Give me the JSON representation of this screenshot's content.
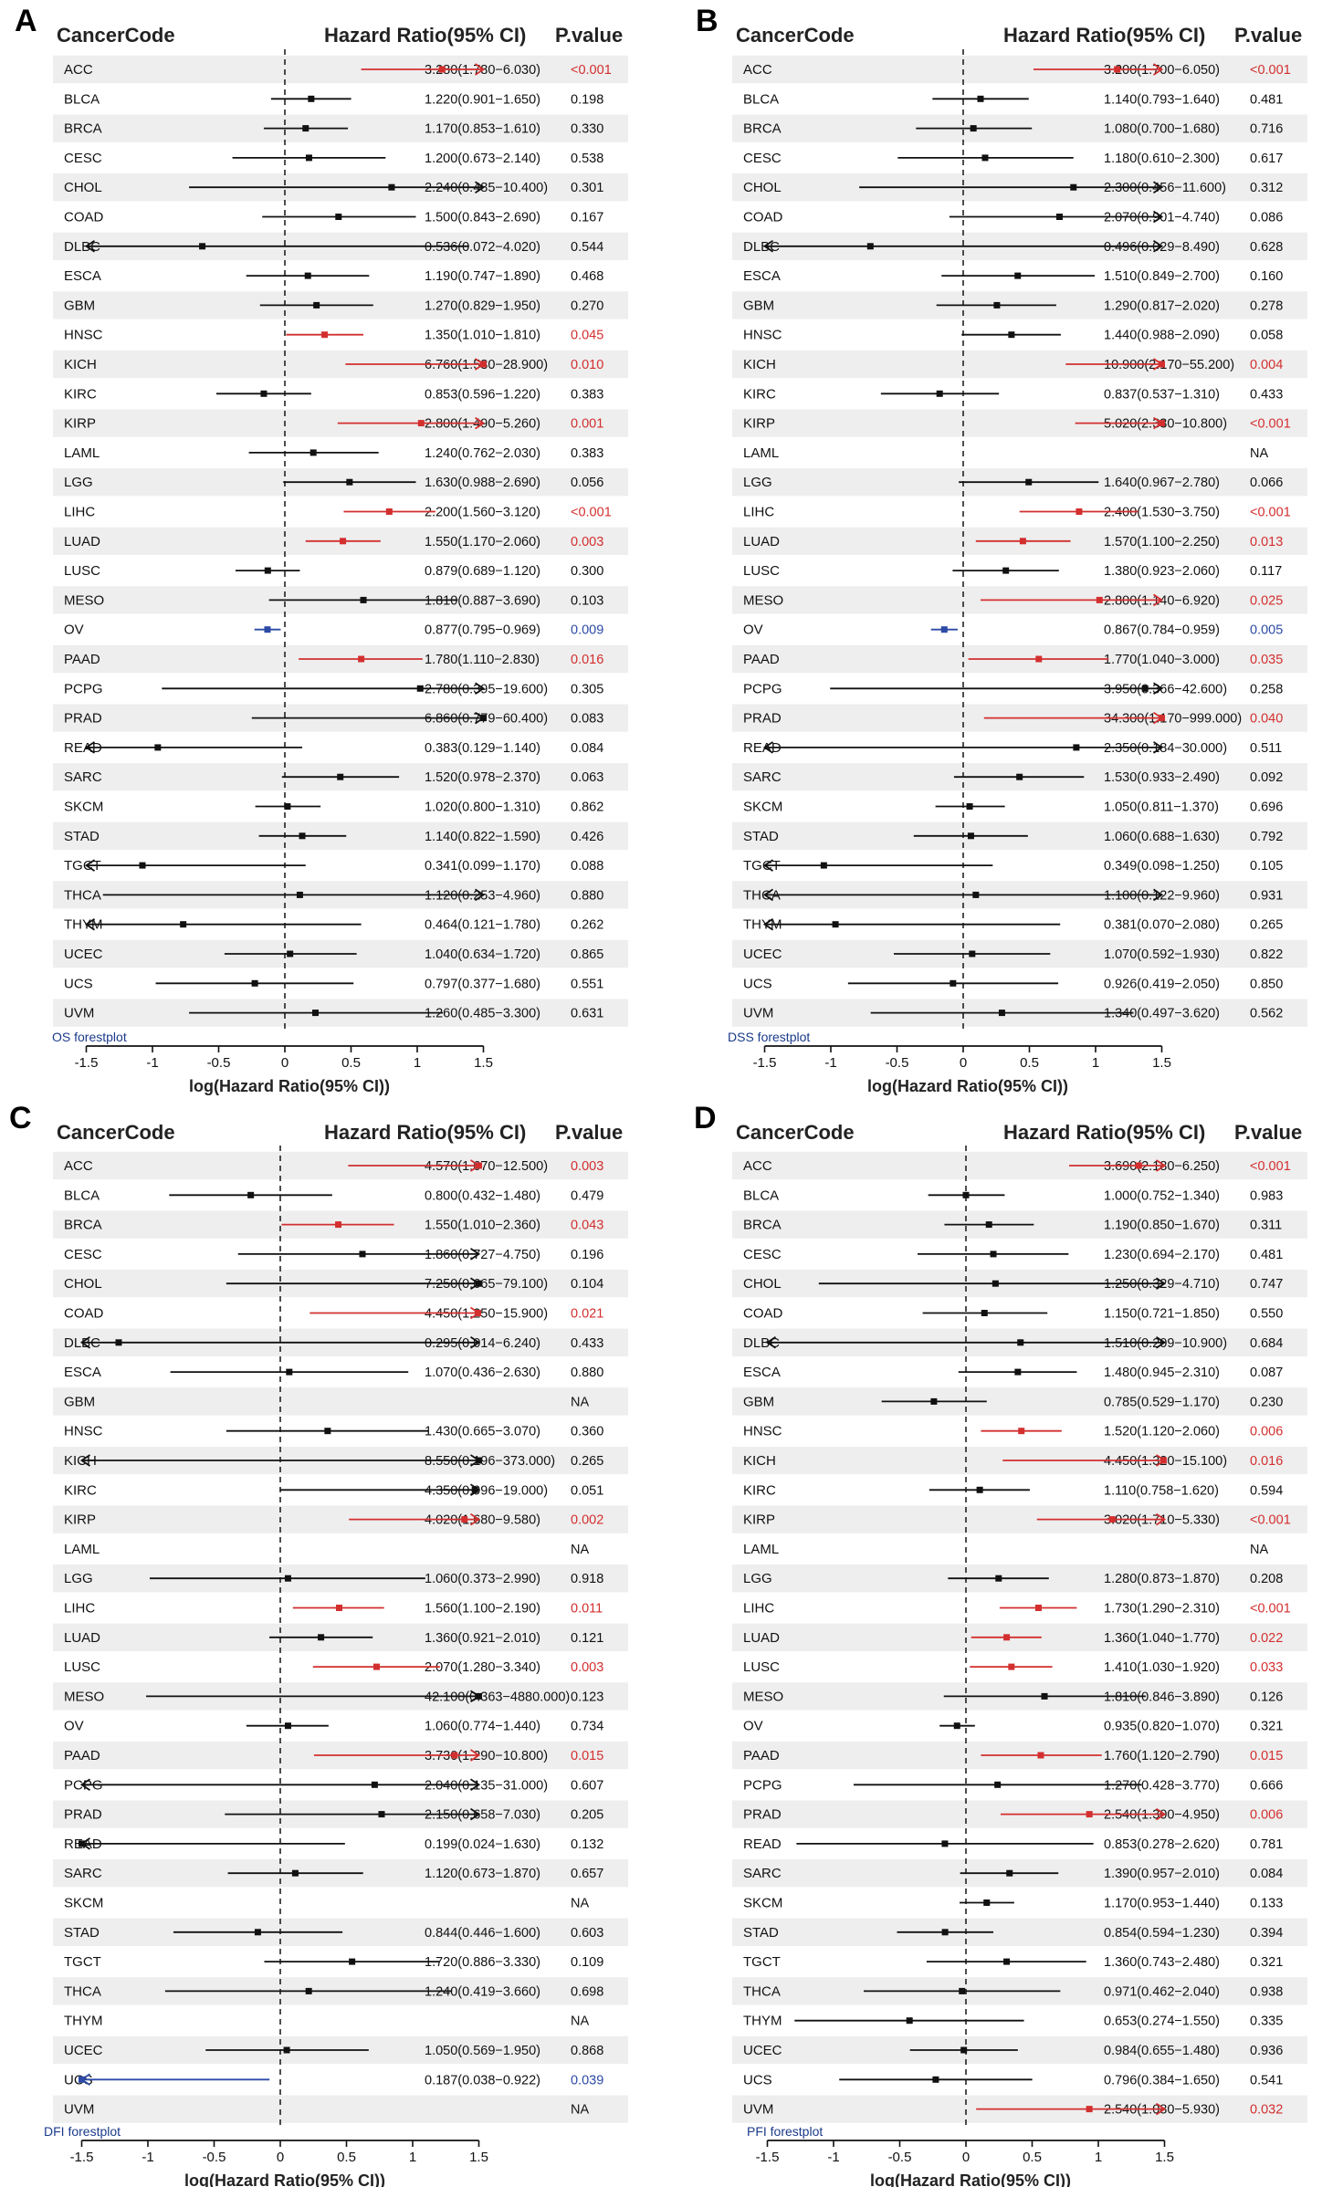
{
  "colors": {
    "sig_up": "#d32f2f",
    "sig_down": "#2c4aa6",
    "ns": "#111111",
    "stripe": "#eeeeee",
    "axis": "#111111",
    "plot_label": "#1a3a8a"
  },
  "column_headers": {
    "code": "CancerCode",
    "hr": "Hazard Ratio(95% CI)",
    "p": "P.value"
  },
  "panels": [
    {
      "letter": "A",
      "plot_label": "OS forestplot",
      "xlabel": "log(Hazard Ratio(95% CI))",
      "ticks": [
        "-1.5",
        "-1",
        "-0.5",
        "0",
        "0.5",
        "1",
        "1.5"
      ],
      "rows": [
        {
          "code": "ACC",
          "hr": "3.280(1.780−6.030)",
          "p": "<0.001",
          "sig": "up"
        },
        {
          "code": "BLCA",
          "hr": "1.220(0.901−1.650)",
          "p": "0.198",
          "sig": "ns"
        },
        {
          "code": "BRCA",
          "hr": "1.170(0.853−1.610)",
          "p": "0.330",
          "sig": "ns"
        },
        {
          "code": "CESC",
          "hr": "1.200(0.673−2.140)",
          "p": "0.538",
          "sig": "ns"
        },
        {
          "code": "CHOL",
          "hr": "2.240(0.485−10.400)",
          "p": "0.301",
          "sig": "ns"
        },
        {
          "code": "COAD",
          "hr": "1.500(0.843−2.690)",
          "p": "0.167",
          "sig": "ns"
        },
        {
          "code": "DLBC",
          "hr": "0.536(0.072−4.020)",
          "p": "0.544",
          "sig": "ns"
        },
        {
          "code": "ESCA",
          "hr": "1.190(0.747−1.890)",
          "p": "0.468",
          "sig": "ns"
        },
        {
          "code": "GBM",
          "hr": "1.270(0.829−1.950)",
          "p": "0.270",
          "sig": "ns"
        },
        {
          "code": "HNSC",
          "hr": "1.350(1.010−1.810)",
          "p": "0.045",
          "sig": "up"
        },
        {
          "code": "KICH",
          "hr": "6.760(1.580−28.900)",
          "p": "0.010",
          "sig": "up"
        },
        {
          "code": "KIRC",
          "hr": "0.853(0.596−1.220)",
          "p": "0.383",
          "sig": "ns"
        },
        {
          "code": "KIRP",
          "hr": "2.800(1.490−5.260)",
          "p": "0.001",
          "sig": "up"
        },
        {
          "code": "LAML",
          "hr": "1.240(0.762−2.030)",
          "p": "0.383",
          "sig": "ns"
        },
        {
          "code": "LGG",
          "hr": "1.630(0.988−2.690)",
          "p": "0.056",
          "sig": "ns"
        },
        {
          "code": "LIHC",
          "hr": "2.200(1.560−3.120)",
          "p": "<0.001",
          "sig": "up"
        },
        {
          "code": "LUAD",
          "hr": "1.550(1.170−2.060)",
          "p": "0.003",
          "sig": "up"
        },
        {
          "code": "LUSC",
          "hr": "0.879(0.689−1.120)",
          "p": "0.300",
          "sig": "ns"
        },
        {
          "code": "MESO",
          "hr": "1.810(0.887−3.690)",
          "p": "0.103",
          "sig": "ns"
        },
        {
          "code": "OV",
          "hr": "0.877(0.795−0.969)",
          "p": "0.009",
          "sig": "down"
        },
        {
          "code": "PAAD",
          "hr": "1.780(1.110−2.830)",
          "p": "0.016",
          "sig": "up"
        },
        {
          "code": "PCPG",
          "hr": "2.780(0.395−19.600)",
          "p": "0.305",
          "sig": "ns"
        },
        {
          "code": "PRAD",
          "hr": "6.860(0.779−60.400)",
          "p": "0.083",
          "sig": "ns"
        },
        {
          "code": "READ",
          "hr": "0.383(0.129−1.140)",
          "p": "0.084",
          "sig": "ns"
        },
        {
          "code": "SARC",
          "hr": "1.520(0.978−2.370)",
          "p": "0.063",
          "sig": "ns"
        },
        {
          "code": "SKCM",
          "hr": "1.020(0.800−1.310)",
          "p": "0.862",
          "sig": "ns"
        },
        {
          "code": "STAD",
          "hr": "1.140(0.822−1.590)",
          "p": "0.426",
          "sig": "ns"
        },
        {
          "code": "TGCT",
          "hr": "0.341(0.099−1.170)",
          "p": "0.088",
          "sig": "ns"
        },
        {
          "code": "THCA",
          "hr": "1.120(0.253−4.960)",
          "p": "0.880",
          "sig": "ns"
        },
        {
          "code": "THYM",
          "hr": "0.464(0.121−1.780)",
          "p": "0.262",
          "sig": "ns"
        },
        {
          "code": "UCEC",
          "hr": "1.040(0.634−1.720)",
          "p": "0.865",
          "sig": "ns"
        },
        {
          "code": "UCS",
          "hr": "0.797(0.377−1.680)",
          "p": "0.551",
          "sig": "ns"
        },
        {
          "code": "UVM",
          "hr": "1.260(0.485−3.300)",
          "p": "0.631",
          "sig": "ns"
        }
      ]
    },
    {
      "letter": "B",
      "plot_label": "DSS forestplot",
      "xlabel": "log(Hazard Ratio(95% CI))",
      "ticks": [
        "-1.5",
        "-1",
        "-0.5",
        "0",
        "0.5",
        "1",
        "1.5"
      ],
      "rows": [
        {
          "code": "ACC",
          "hr": "3.200(1.700−6.050)",
          "p": "<0.001",
          "sig": "up"
        },
        {
          "code": "BLCA",
          "hr": "1.140(0.793−1.640)",
          "p": "0.481",
          "sig": "ns"
        },
        {
          "code": "BRCA",
          "hr": "1.080(0.700−1.680)",
          "p": "0.716",
          "sig": "ns"
        },
        {
          "code": "CESC",
          "hr": "1.180(0.610−2.300)",
          "p": "0.617",
          "sig": "ns"
        },
        {
          "code": "CHOL",
          "hr": "2.300(0.456−11.600)",
          "p": "0.312",
          "sig": "ns"
        },
        {
          "code": "COAD",
          "hr": "2.070(0.901−4.740)",
          "p": "0.086",
          "sig": "ns"
        },
        {
          "code": "DLBC",
          "hr": "0.496(0.029−8.490)",
          "p": "0.628",
          "sig": "ns"
        },
        {
          "code": "ESCA",
          "hr": "1.510(0.849−2.700)",
          "p": "0.160",
          "sig": "ns"
        },
        {
          "code": "GBM",
          "hr": "1.290(0.817−2.020)",
          "p": "0.278",
          "sig": "ns"
        },
        {
          "code": "HNSC",
          "hr": "1.440(0.988−2.090)",
          "p": "0.058",
          "sig": "ns"
        },
        {
          "code": "KICH",
          "hr": "10.900(2.170−55.200)",
          "p": "0.004",
          "sig": "up"
        },
        {
          "code": "KIRC",
          "hr": "0.837(0.537−1.310)",
          "p": "0.433",
          "sig": "ns"
        },
        {
          "code": "KIRP",
          "hr": "5.020(2.330−10.800)",
          "p": "<0.001",
          "sig": "up"
        },
        {
          "code": "LAML",
          "hr": "",
          "p": "NA",
          "sig": "na"
        },
        {
          "code": "LGG",
          "hr": "1.640(0.967−2.780)",
          "p": "0.066",
          "sig": "ns"
        },
        {
          "code": "LIHC",
          "hr": "2.400(1.530−3.750)",
          "p": "<0.001",
          "sig": "up"
        },
        {
          "code": "LUAD",
          "hr": "1.570(1.100−2.250)",
          "p": "0.013",
          "sig": "up"
        },
        {
          "code": "LUSC",
          "hr": "1.380(0.923−2.060)",
          "p": "0.117",
          "sig": "ns"
        },
        {
          "code": "MESO",
          "hr": "2.800(1.140−6.920)",
          "p": "0.025",
          "sig": "up"
        },
        {
          "code": "OV",
          "hr": "0.867(0.784−0.959)",
          "p": "0.005",
          "sig": "down"
        },
        {
          "code": "PAAD",
          "hr": "1.770(1.040−3.000)",
          "p": "0.035",
          "sig": "up"
        },
        {
          "code": "PCPG",
          "hr": "3.950(0.366−42.600)",
          "p": "0.258",
          "sig": "ns"
        },
        {
          "code": "PRAD",
          "hr": "34.300(1.170−999.000)",
          "p": "0.040",
          "sig": "up"
        },
        {
          "code": "READ",
          "hr": "2.350(0.184−30.000)",
          "p": "0.511",
          "sig": "ns"
        },
        {
          "code": "SARC",
          "hr": "1.530(0.933−2.490)",
          "p": "0.092",
          "sig": "ns"
        },
        {
          "code": "SKCM",
          "hr": "1.050(0.811−1.370)",
          "p": "0.696",
          "sig": "ns"
        },
        {
          "code": "STAD",
          "hr": "1.060(0.688−1.630)",
          "p": "0.792",
          "sig": "ns"
        },
        {
          "code": "TGCT",
          "hr": "0.349(0.098−1.250)",
          "p": "0.105",
          "sig": "ns"
        },
        {
          "code": "THCA",
          "hr": "1.100(0.122−9.960)",
          "p": "0.931",
          "sig": "ns"
        },
        {
          "code": "THYM",
          "hr": "0.381(0.070−2.080)",
          "p": "0.265",
          "sig": "ns"
        },
        {
          "code": "UCEC",
          "hr": "1.070(0.592−1.930)",
          "p": "0.822",
          "sig": "ns"
        },
        {
          "code": "UCS",
          "hr": "0.926(0.419−2.050)",
          "p": "0.850",
          "sig": "ns"
        },
        {
          "code": "UVM",
          "hr": "1.340(0.497−3.620)",
          "p": "0.562",
          "sig": "ns"
        }
      ]
    },
    {
      "letter": "C",
      "plot_label": "DFI forestplot",
      "xlabel": "log(Hazard Ratio(95% CI))",
      "ticks": [
        "-1.5",
        "-1",
        "-0.5",
        "0",
        "0.5",
        "1",
        "1.5"
      ],
      "rows": [
        {
          "code": "ACC",
          "hr": "4.570(1.670−12.500)",
          "p": "0.003",
          "sig": "up"
        },
        {
          "code": "BLCA",
          "hr": "0.800(0.432−1.480)",
          "p": "0.479",
          "sig": "ns"
        },
        {
          "code": "BRCA",
          "hr": "1.550(1.010−2.360)",
          "p": "0.043",
          "sig": "up"
        },
        {
          "code": "CESC",
          "hr": "1.860(0.727−4.750)",
          "p": "0.196",
          "sig": "ns"
        },
        {
          "code": "CHOL",
          "hr": "7.250(0.665−79.100)",
          "p": "0.104",
          "sig": "ns"
        },
        {
          "code": "COAD",
          "hr": "4.450(1.250−15.900)",
          "p": "0.021",
          "sig": "up"
        },
        {
          "code": "DLBC",
          "hr": "0.295(0.014−6.240)",
          "p": "0.433",
          "sig": "ns"
        },
        {
          "code": "ESCA",
          "hr": "1.070(0.436−2.630)",
          "p": "0.880",
          "sig": "ns"
        },
        {
          "code": "GBM",
          "hr": "",
          "p": "NA",
          "sig": "na"
        },
        {
          "code": "HNSC",
          "hr": "1.430(0.665−3.070)",
          "p": "0.360",
          "sig": "ns"
        },
        {
          "code": "KICH",
          "hr": "8.550(0.196−373.000)",
          "p": "0.265",
          "sig": "ns"
        },
        {
          "code": "KIRC",
          "hr": "4.350(0.996−19.000)",
          "p": "0.051",
          "sig": "ns"
        },
        {
          "code": "KIRP",
          "hr": "4.020(1.680−9.580)",
          "p": "0.002",
          "sig": "up"
        },
        {
          "code": "LAML",
          "hr": "",
          "p": "NA",
          "sig": "na"
        },
        {
          "code": "LGG",
          "hr": "1.060(0.373−2.990)",
          "p": "0.918",
          "sig": "ns"
        },
        {
          "code": "LIHC",
          "hr": "1.560(1.100−2.190)",
          "p": "0.011",
          "sig": "up"
        },
        {
          "code": "LUAD",
          "hr": "1.360(0.921−2.010)",
          "p": "0.121",
          "sig": "ns"
        },
        {
          "code": "LUSC",
          "hr": "2.070(1.280−3.340)",
          "p": "0.003",
          "sig": "up"
        },
        {
          "code": "MESO",
          "hr": "42.100(0.363−4880.000)",
          "p": "0.123",
          "sig": "ns"
        },
        {
          "code": "OV",
          "hr": "1.060(0.774−1.440)",
          "p": "0.734",
          "sig": "ns"
        },
        {
          "code": "PAAD",
          "hr": "3.730(1.290−10.800)",
          "p": "0.015",
          "sig": "up"
        },
        {
          "code": "PCPG",
          "hr": "2.040(0.135−31.000)",
          "p": "0.607",
          "sig": "ns"
        },
        {
          "code": "PRAD",
          "hr": "2.150(0.658−7.030)",
          "p": "0.205",
          "sig": "ns"
        },
        {
          "code": "READ",
          "hr": "0.199(0.024−1.630)",
          "p": "0.132",
          "sig": "ns"
        },
        {
          "code": "SARC",
          "hr": "1.120(0.673−1.870)",
          "p": "0.657",
          "sig": "ns"
        },
        {
          "code": "SKCM",
          "hr": "",
          "p": "NA",
          "sig": "na"
        },
        {
          "code": "STAD",
          "hr": "0.844(0.446−1.600)",
          "p": "0.603",
          "sig": "ns"
        },
        {
          "code": "TGCT",
          "hr": "1.720(0.886−3.330)",
          "p": "0.109",
          "sig": "ns"
        },
        {
          "code": "THCA",
          "hr": "1.240(0.419−3.660)",
          "p": "0.698",
          "sig": "ns"
        },
        {
          "code": "THYM",
          "hr": "",
          "p": "NA",
          "sig": "na"
        },
        {
          "code": "UCEC",
          "hr": "1.050(0.569−1.950)",
          "p": "0.868",
          "sig": "ns"
        },
        {
          "code": "UCS",
          "hr": "0.187(0.038−0.922)",
          "p": "0.039",
          "sig": "down"
        },
        {
          "code": "UVM",
          "hr": "",
          "p": "NA",
          "sig": "na"
        }
      ]
    },
    {
      "letter": "D",
      "plot_label": "PFI forestplot",
      "xlabel": "log(Hazard Ratio(95% CI))",
      "ticks": [
        "-1.5",
        "-1",
        "-0.5",
        "0",
        "0.5",
        "1",
        "1.5"
      ],
      "rows": [
        {
          "code": "ACC",
          "hr": "3.690(2.180−6.250)",
          "p": "<0.001",
          "sig": "up"
        },
        {
          "code": "BLCA",
          "hr": "1.000(0.752−1.340)",
          "p": "0.983",
          "sig": "ns"
        },
        {
          "code": "BRCA",
          "hr": "1.190(0.850−1.670)",
          "p": "0.311",
          "sig": "ns"
        },
        {
          "code": "CESC",
          "hr": "1.230(0.694−2.170)",
          "p": "0.481",
          "sig": "ns"
        },
        {
          "code": "CHOL",
          "hr": "1.250(0.329−4.710)",
          "p": "0.747",
          "sig": "ns"
        },
        {
          "code": "COAD",
          "hr": "1.150(0.721−1.850)",
          "p": "0.550",
          "sig": "ns"
        },
        {
          "code": "DLBC",
          "hr": "1.510(0.209−10.900)",
          "p": "0.684",
          "sig": "ns"
        },
        {
          "code": "ESCA",
          "hr": "1.480(0.945−2.310)",
          "p": "0.087",
          "sig": "ns"
        },
        {
          "code": "GBM",
          "hr": "0.785(0.529−1.170)",
          "p": "0.230",
          "sig": "ns"
        },
        {
          "code": "HNSC",
          "hr": "1.520(1.120−2.060)",
          "p": "0.006",
          "sig": "up"
        },
        {
          "code": "KICH",
          "hr": "4.450(1.320−15.100)",
          "p": "0.016",
          "sig": "up"
        },
        {
          "code": "KIRC",
          "hr": "1.110(0.758−1.620)",
          "p": "0.594",
          "sig": "ns"
        },
        {
          "code": "KIRP",
          "hr": "3.020(1.710−5.330)",
          "p": "<0.001",
          "sig": "up"
        },
        {
          "code": "LAML",
          "hr": "",
          "p": "NA",
          "sig": "na"
        },
        {
          "code": "LGG",
          "hr": "1.280(0.873−1.870)",
          "p": "0.208",
          "sig": "ns"
        },
        {
          "code": "LIHC",
          "hr": "1.730(1.290−2.310)",
          "p": "<0.001",
          "sig": "up"
        },
        {
          "code": "LUAD",
          "hr": "1.360(1.040−1.770)",
          "p": "0.022",
          "sig": "up"
        },
        {
          "code": "LUSC",
          "hr": "1.410(1.030−1.920)",
          "p": "0.033",
          "sig": "up"
        },
        {
          "code": "MESO",
          "hr": "1.810(0.846−3.890)",
          "p": "0.126",
          "sig": "ns"
        },
        {
          "code": "OV",
          "hr": "0.935(0.820−1.070)",
          "p": "0.321",
          "sig": "ns"
        },
        {
          "code": "PAAD",
          "hr": "1.760(1.120−2.790)",
          "p": "0.015",
          "sig": "up"
        },
        {
          "code": "PCPG",
          "hr": "1.270(0.428−3.770)",
          "p": "0.666",
          "sig": "ns"
        },
        {
          "code": "PRAD",
          "hr": "2.540(1.300−4.950)",
          "p": "0.006",
          "sig": "up"
        },
        {
          "code": "READ",
          "hr": "0.853(0.278−2.620)",
          "p": "0.781",
          "sig": "ns"
        },
        {
          "code": "SARC",
          "hr": "1.390(0.957−2.010)",
          "p": "0.084",
          "sig": "ns"
        },
        {
          "code": "SKCM",
          "hr": "1.170(0.953−1.440)",
          "p": "0.133",
          "sig": "ns"
        },
        {
          "code": "STAD",
          "hr": "0.854(0.594−1.230)",
          "p": "0.394",
          "sig": "ns"
        },
        {
          "code": "TGCT",
          "hr": "1.360(0.743−2.480)",
          "p": "0.321",
          "sig": "ns"
        },
        {
          "code": "THCA",
          "hr": "0.971(0.462−2.040)",
          "p": "0.938",
          "sig": "ns"
        },
        {
          "code": "THYM",
          "hr": "0.653(0.274−1.550)",
          "p": "0.335",
          "sig": "ns"
        },
        {
          "code": "UCEC",
          "hr": "0.984(0.655−1.480)",
          "p": "0.936",
          "sig": "ns"
        },
        {
          "code": "UCS",
          "hr": "0.796(0.384−1.650)",
          "p": "0.541",
          "sig": "ns"
        },
        {
          "code": "UVM",
          "hr": "2.540(1.080−5.930)",
          "p": "0.032",
          "sig": "up"
        }
      ]
    }
  ],
  "chart_data": [
    {
      "type": "forest",
      "title": "OS forestplot",
      "xlabel": "log(Hazard Ratio(95% CI))",
      "xlim": [
        -1.5,
        1.5
      ]
    },
    {
      "type": "forest",
      "title": "DSS forestplot",
      "xlabel": "log(Hazard Ratio(95% CI))",
      "xlim": [
        -1.5,
        1.5
      ]
    },
    {
      "type": "forest",
      "title": "DFI forestplot",
      "xlabel": "log(Hazard Ratio(95% CI))",
      "xlim": [
        -1.5,
        1.5
      ]
    },
    {
      "type": "forest",
      "title": "PFI forestplot",
      "xlabel": "log(Hazard Ratio(95% CI))",
      "xlim": [
        -1.5,
        1.5
      ]
    }
  ]
}
